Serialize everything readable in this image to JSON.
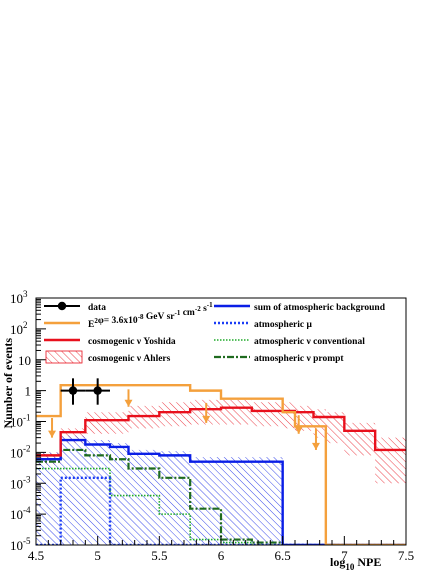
{
  "chart_data": {
    "type": "histogram",
    "xlabel": "log",
    "xlabel_sub": "10",
    "xlabel_tail": " NPE",
    "ylabel": "Number of events",
    "xlim": [
      4.5,
      7.5
    ],
    "ylog": true,
    "ylim": [
      1e-05,
      1000
    ],
    "x_ticks": [
      {
        "value": 4.5,
        "label": "4.5"
      },
      {
        "value": 5,
        "label": "5"
      },
      {
        "value": 5.5,
        "label": "5.5"
      },
      {
        "value": 6,
        "label": "6"
      },
      {
        "value": 6.5,
        "label": "6.5"
      },
      {
        "value": 7,
        "label": "7"
      },
      {
        "value": 7.5,
        "label": "7.5"
      }
    ],
    "y_ticks": [
      {
        "value": 1e-05,
        "base": "10",
        "exp": "-5"
      },
      {
        "value": 0.0001,
        "base": "10",
        "exp": "-4"
      },
      {
        "value": 0.001,
        "base": "10",
        "exp": "-3"
      },
      {
        "value": 0.01,
        "base": "10",
        "exp": "-2"
      },
      {
        "value": 0.1,
        "base": "10",
        "exp": "-1"
      },
      {
        "value": 1,
        "base": "1",
        "exp": ""
      },
      {
        "value": 10,
        "base": "10",
        "exp": ""
      },
      {
        "value": 100,
        "base": "10",
        "exp": "2"
      },
      {
        "value": 1000,
        "base": "10",
        "exp": "3"
      }
    ],
    "legend_position": "top",
    "bin_edges": [
      4.5,
      4.6,
      4.7,
      4.9,
      5.1,
      5.25,
      5.5,
      5.75,
      6.0,
      6.25,
      6.5,
      6.6,
      6.75,
      6.85,
      7.0,
      7.25,
      7.5
    ],
    "series": [
      {
        "name": "data",
        "kind": "points",
        "color": "#000000",
        "points": [
          {
            "x": 4.8,
            "y": 1.0,
            "xerr": 0.1,
            "ylo": 0.35,
            "yhi": 2.5
          },
          {
            "x": 5.0,
            "y": 1.0,
            "xerr": 0.1,
            "ylo": 0.35,
            "yhi": 2.5
          }
        ]
      },
      {
        "name": "E²φ= 3.6x10",
        "legend_parts": [
          {
            "t": "E",
            "s": "n"
          },
          {
            "t": "2",
            "s": "sup"
          },
          {
            "t": "φ= 3.6x10",
            "s": "n"
          },
          {
            "t": "-8",
            "s": "sup"
          },
          {
            "t": " GeV sr",
            "s": "n"
          },
          {
            "t": "-1",
            "s": "sup"
          },
          {
            "t": " cm",
            "s": "n"
          },
          {
            "t": "-2",
            "s": "sup"
          },
          {
            "t": " s",
            "s": "n"
          },
          {
            "t": "-1",
            "s": "sup"
          }
        ],
        "kind": "step",
        "color": "#f4a03c",
        "width": 2.4,
        "values": [
          0.15,
          0.15,
          1.5,
          1.5,
          1.5,
          1.5,
          1.5,
          1.0,
          0.55,
          0.55,
          0.2,
          0.07,
          0.07,
          1e-05,
          1e-05,
          1e-05
        ],
        "arrows": [
          {
            "x": 4.63,
            "ytop": 0.13,
            "ybot": 0.03
          },
          {
            "x": 5.25,
            "ytop": 1.1,
            "ybot": 0.3
          },
          {
            "x": 5.88,
            "ytop": 0.4,
            "ybot": 0.09
          },
          {
            "x": 6.63,
            "ytop": 0.16,
            "ybot": 0.04
          },
          {
            "x": 6.77,
            "ytop": 0.06,
            "ybot": 0.012
          }
        ]
      },
      {
        "name": "cosmogenic ν Yoshida",
        "kind": "step",
        "color": "#e8101c",
        "width": 2.4,
        "values": [
          0.008,
          0.008,
          0.045,
          0.11,
          0.11,
          0.15,
          0.2,
          0.25,
          0.28,
          0.22,
          0.22,
          0.2,
          0.14,
          0.14,
          0.05,
          0.012
        ]
      },
      {
        "name": "cosmogenic ν Ahlers",
        "kind": "band",
        "color": "#e8101c",
        "lower": [
          0.004,
          0.004,
          0.02,
          0.04,
          0.04,
          0.06,
          0.07,
          0.08,
          0.08,
          0.07,
          0.06,
          0.05,
          0.03,
          0.02,
          0.008,
          0.001
        ],
        "upper": [
          0.01,
          0.01,
          0.06,
          0.2,
          0.2,
          0.32,
          0.42,
          0.5,
          0.5,
          0.42,
          0.42,
          0.32,
          0.25,
          0.2,
          0.09,
          0.03
        ]
      },
      {
        "name": "sum of atmospheric background",
        "kind": "step",
        "color": "#0a1ee6",
        "width": 2.4,
        "values": [
          0.006,
          0.006,
          0.025,
          0.018,
          0.015,
          0.009,
          0.008,
          0.005,
          0.005,
          0.005,
          1e-05,
          1e-05,
          1e-05,
          1e-05,
          1e-05,
          1e-05
        ],
        "band_lower": [
          1e-05,
          1e-05,
          1e-05,
          1e-05,
          1e-05,
          1e-05,
          1e-05,
          1e-05,
          1e-05,
          1e-05,
          1e-05,
          1e-05,
          1e-05,
          1e-05,
          1e-05,
          1e-05
        ],
        "band_upper": [
          0.01,
          0.01,
          0.035,
          0.025,
          0.02,
          0.012,
          0.011,
          0.007,
          0.007,
          0.007,
          1e-05,
          1e-05,
          1e-05,
          1e-05,
          1e-05,
          1e-05
        ]
      },
      {
        "name": "atmospheric μ",
        "kind": "step",
        "color": "#1a3cf5",
        "width": 2.4,
        "dash": "2,2",
        "values": [
          1e-05,
          1e-05,
          0.0015,
          0.0015,
          1e-05,
          1e-05,
          1e-05,
          1e-05,
          1e-05,
          1e-05,
          1e-05,
          1e-05,
          1e-05,
          1e-05,
          1e-05,
          1e-05
        ]
      },
      {
        "name": "atmospheric ν conventional",
        "kind": "step",
        "color": "#1eaa28",
        "width": 1.6,
        "dash": "1.5,1.5",
        "values": [
          0.003,
          0.003,
          0.003,
          0.003,
          0.0004,
          0.0004,
          0.0001,
          1.5e-05,
          1.2e-05,
          1e-05,
          1e-05,
          1e-05,
          1e-05,
          1e-05,
          1e-05,
          1e-05
        ]
      },
      {
        "name": "atmospheric ν prompt",
        "kind": "step",
        "color": "#1f6b1f",
        "width": 2.2,
        "dash": "7,2,2,2",
        "values": [
          0.005,
          0.005,
          0.012,
          0.008,
          0.006,
          0.003,
          0.0015,
          0.00015,
          1.5e-05,
          1.2e-05,
          1e-05,
          1e-05,
          1e-05,
          1e-05,
          1e-05,
          1e-05
        ]
      }
    ]
  }
}
